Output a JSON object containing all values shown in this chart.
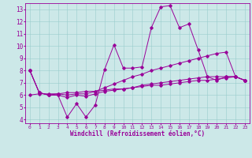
{
  "xlabel": "Windchill (Refroidissement éolien,°C)",
  "background_color": "#cce8e8",
  "line_color": "#990099",
  "xlim": [
    -0.5,
    23.5
  ],
  "ylim": [
    3.7,
    13.5
  ],
  "yticks": [
    4,
    5,
    6,
    7,
    8,
    9,
    10,
    11,
    12,
    13
  ],
  "xticks": [
    0,
    1,
    2,
    3,
    4,
    5,
    6,
    7,
    8,
    9,
    10,
    11,
    12,
    13,
    14,
    15,
    16,
    17,
    18,
    19,
    20,
    21,
    22,
    23
  ],
  "series": [
    [
      8.0,
      6.2,
      6.0,
      6.0,
      4.2,
      5.3,
      4.2,
      5.2,
      8.1,
      10.1,
      8.2,
      8.2,
      8.3,
      11.5,
      13.2,
      13.3,
      11.5,
      11.8,
      9.7,
      7.5,
      7.2,
      7.5,
      7.5,
      7.2
    ],
    [
      8.0,
      6.2,
      6.0,
      6.1,
      6.0,
      6.1,
      6.1,
      6.3,
      6.6,
      6.9,
      7.2,
      7.5,
      7.7,
      8.0,
      8.2,
      8.4,
      8.6,
      8.8,
      9.0,
      9.2,
      9.4,
      9.5,
      7.5,
      7.2
    ],
    [
      8.0,
      6.2,
      6.0,
      6.0,
      5.8,
      6.0,
      5.9,
      6.1,
      6.3,
      6.4,
      6.5,
      6.6,
      6.8,
      6.9,
      7.0,
      7.1,
      7.2,
      7.3,
      7.4,
      7.5,
      7.5,
      7.5,
      7.5,
      7.2
    ],
    [
      6.0,
      6.1,
      6.1,
      6.1,
      6.2,
      6.2,
      6.3,
      6.3,
      6.4,
      6.5,
      6.5,
      6.6,
      6.7,
      6.8,
      6.8,
      6.9,
      7.0,
      7.1,
      7.2,
      7.2,
      7.3,
      7.4,
      7.5,
      7.2
    ]
  ]
}
